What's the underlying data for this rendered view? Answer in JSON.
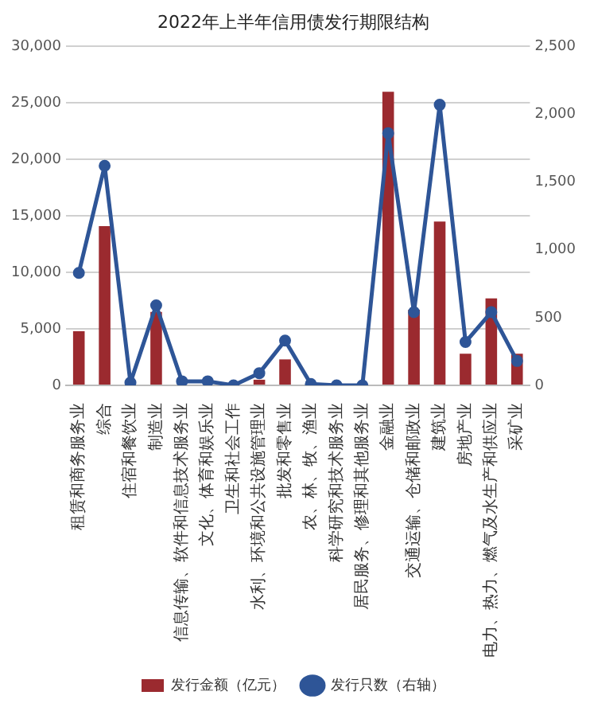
{
  "chart_data": {
    "type": "bar",
    "title": "2022年上半年信用债发行期限结构",
    "categories": [
      "租赁和商务服务业",
      "综合",
      "住宿和餐饮业",
      "制造业",
      "信息传输、软件和信息技术服务业",
      "文化、体育和娱乐业",
      "卫生和社会工作",
      "水利、环境和公共设施管理业",
      "批发和零售业",
      "农、林、牧、渔业",
      "科学研究和技术服务业",
      "居民服务、修理和其他服务业",
      "金融业",
      "交通运输、仓储和邮政业",
      "建筑业",
      "房地产业",
      "电力、热力、燃气及水生产和供应业",
      "采矿业"
    ],
    "series": [
      {
        "name": "发行金额（亿元）",
        "color": "#9b2a2f",
        "values": [
          4800,
          14100,
          0,
          6500,
          0,
          0,
          0,
          500,
          2300,
          0,
          0,
          0,
          26000,
          6700,
          14500,
          2800,
          7700,
          2800
        ]
      },
      {
        "name": "发行只数（右轴）",
        "type": "line",
        "axis": "y2",
        "color": "#2e5597",
        "marker": "circle",
        "values": [
          830,
          1620,
          20,
          590,
          30,
          30,
          0,
          90,
          330,
          10,
          0,
          0,
          1860,
          540,
          2070,
          320,
          540,
          180
        ]
      }
    ],
    "ylim": [
      0,
      30000
    ],
    "yticks": [
      0,
      {
        "value": 5000,
        "label": "5,000"
      },
      {
        "value": 10000,
        "label": "10,000"
      },
      {
        "value": 15000,
        "label": "15,000"
      },
      {
        "value": 20000,
        "label": "20,000"
      },
      {
        "value": 25000,
        "label": "25,000"
      },
      {
        "value": 30000,
        "label": "30,000"
      }
    ],
    "y2lim": [
      0,
      2500
    ],
    "y2ticks": [
      0,
      500,
      {
        "value": 1000,
        "label": "1,000"
      },
      {
        "value": 1500,
        "label": "1,500"
      },
      {
        "value": 2000,
        "label": "2,000"
      },
      {
        "value": 2500,
        "label": "2,500"
      }
    ],
    "grid": "y",
    "legend": "bottom"
  }
}
